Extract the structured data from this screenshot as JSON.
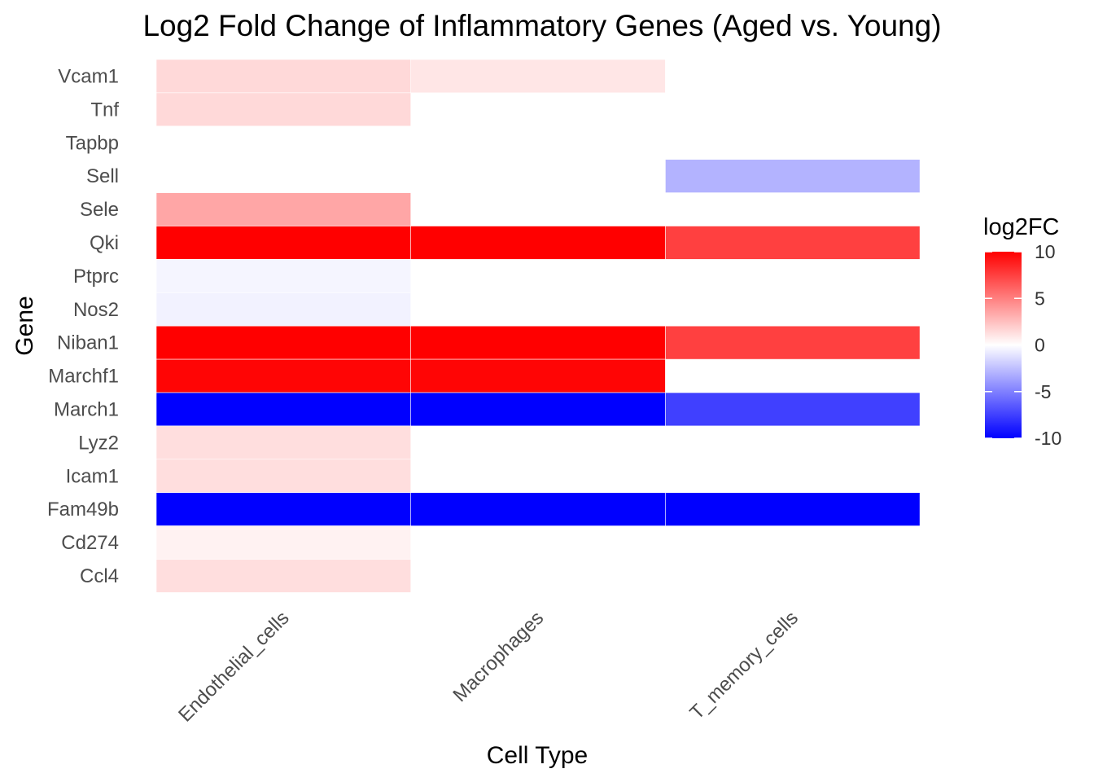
{
  "chart_data": {
    "type": "heatmap",
    "title": "Log2 Fold Change of Inflammatory Genes (Aged vs. Young)",
    "xlabel": "Cell Type",
    "ylabel": "Gene",
    "x_categories": [
      "Endothelial_cells",
      "Macrophages",
      "T_memory_cells"
    ],
    "y_categories": [
      "Vcam1",
      "Tnf",
      "Tapbp",
      "Sell",
      "Sele",
      "Qki",
      "Ptprc",
      "Nos2",
      "Niban1",
      "Marchf1",
      "March1",
      "Lyz2",
      "Icam1",
      "Fam49b",
      "Cd274",
      "Ccl4"
    ],
    "cells": [
      {
        "x": "Endothelial_cells",
        "y": "Vcam1",
        "value": 1.5
      },
      {
        "x": "Macrophages",
        "y": "Vcam1",
        "value": 1.0
      },
      {
        "x": "Endothelial_cells",
        "y": "Tnf",
        "value": 1.5
      },
      {
        "x": "T_memory_cells",
        "y": "Sell",
        "value": -3.0
      },
      {
        "x": "Endothelial_cells",
        "y": "Sele",
        "value": 3.5
      },
      {
        "x": "Endothelial_cells",
        "y": "Qki",
        "value": 10.0
      },
      {
        "x": "Macrophages",
        "y": "Qki",
        "value": 10.0
      },
      {
        "x": "T_memory_cells",
        "y": "Qki",
        "value": 7.5
      },
      {
        "x": "Endothelial_cells",
        "y": "Ptprc",
        "value": -0.4
      },
      {
        "x": "Endothelial_cells",
        "y": "Nos2",
        "value": -0.5
      },
      {
        "x": "Endothelial_cells",
        "y": "Niban1",
        "value": 10.0
      },
      {
        "x": "Macrophages",
        "y": "Niban1",
        "value": 10.0
      },
      {
        "x": "T_memory_cells",
        "y": "Niban1",
        "value": 7.5
      },
      {
        "x": "Endothelial_cells",
        "y": "Marchf1",
        "value": 9.8
      },
      {
        "x": "Macrophages",
        "y": "Marchf1",
        "value": 9.8
      },
      {
        "x": "Endothelial_cells",
        "y": "March1",
        "value": -10.0
      },
      {
        "x": "Macrophages",
        "y": "March1",
        "value": -10.0
      },
      {
        "x": "T_memory_cells",
        "y": "March1",
        "value": -7.5
      },
      {
        "x": "Endothelial_cells",
        "y": "Lyz2",
        "value": 1.3
      },
      {
        "x": "Endothelial_cells",
        "y": "Icam1",
        "value": 1.3
      },
      {
        "x": "Endothelial_cells",
        "y": "Fam49b",
        "value": -10.0
      },
      {
        "x": "Macrophages",
        "y": "Fam49b",
        "value": -10.0
      },
      {
        "x": "T_memory_cells",
        "y": "Fam49b",
        "value": -10.0
      },
      {
        "x": "Endothelial_cells",
        "y": "Cd274",
        "value": 0.5
      },
      {
        "x": "Endothelial_cells",
        "y": "Ccl4",
        "value": 1.3
      }
    ],
    "color_scale": {
      "low": "#0000ff",
      "mid": "#ffffff",
      "high": "#ff0000",
      "range": [
        -10,
        10
      ],
      "midpoint": 0
    },
    "legend": {
      "title": "log2FC",
      "placement": "right",
      "breaks": [
        10,
        5,
        0,
        -5,
        -10
      ],
      "labels": [
        "10",
        "5",
        "0",
        "-5",
        "-10"
      ]
    },
    "grid": false
  }
}
